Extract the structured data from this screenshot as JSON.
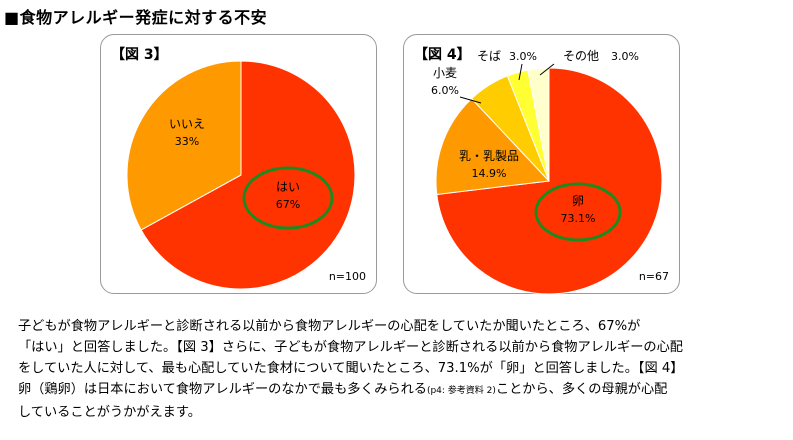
{
  "heading": "■食物アレルギー発症に対する不安",
  "chart_data": [
    {
      "type": "pie",
      "title": "【図 3】",
      "note": "n=100",
      "slices": [
        {
          "label": "はい",
          "value": 67,
          "value_label": "67%",
          "color": "#ff3300"
        },
        {
          "label": "いいえ",
          "value": 33,
          "value_label": "33%",
          "color": "#ff9900"
        }
      ],
      "highlight": "はい"
    },
    {
      "type": "pie",
      "title": "【図 4】",
      "note": "n=67",
      "slices": [
        {
          "label": "卵",
          "value": 73.1,
          "value_label": "73.1%",
          "color": "#ff3300"
        },
        {
          "label": "乳・乳製品",
          "value": 14.9,
          "value_label": "14.9%",
          "color": "#ff9900"
        },
        {
          "label": "小麦",
          "value": 6.0,
          "value_label": "6.0%",
          "color": "#ffcc00"
        },
        {
          "label": "そば",
          "value": 3.0,
          "value_label": "3.0%",
          "color": "#ffff33"
        },
        {
          "label": "その他",
          "value": 3.0,
          "value_label": "3.0%",
          "color": "#ffffcc"
        }
      ],
      "highlight": "卵"
    }
  ],
  "paragraph": {
    "line1": "子どもが食物アレルギーと診断される以前から食物アレルギーの心配をしていたか聞いたところ、67%が",
    "line2": "「はい」と回答しました。【図 3】さらに、子どもが食物アレルギーと診断される以前から食物アレルギーの心配",
    "line3": "をしていた人に対して、最も心配していた食材について聞いたところ、73.1%が「卵」と回答しました。【図 4】",
    "line4_a": "卵（鶏卵）は日本において食物アレルギーのなかで最も多くみられる",
    "line4_ref": "(p4: 参考資料 2)",
    "line4_b": "ことから、多くの母親が心配",
    "line5": "していることがうかがえます。"
  }
}
